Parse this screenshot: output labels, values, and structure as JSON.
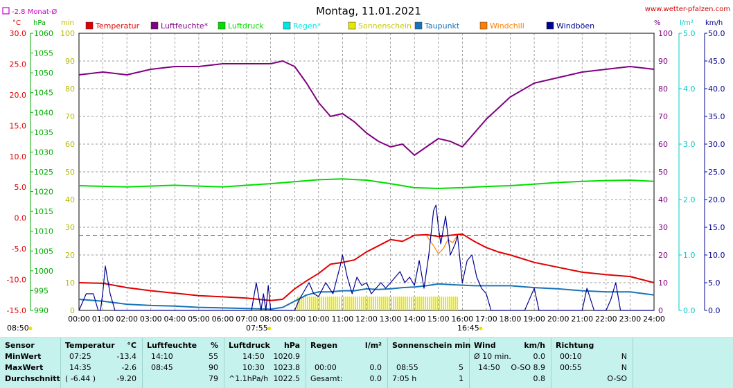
{
  "title": "Montag, 11.01.2021",
  "website": "www.wetter-pfalzen.com",
  "month_avg_label": "-2.8 Monat-Ø",
  "sunrise": "07:55",
  "sunset": "16:45",
  "current_time": "08:50",
  "legend": [
    {
      "name": "Temperatur",
      "color": "#e00000"
    },
    {
      "name": "Luftfeuchte*",
      "color": "#800080"
    },
    {
      "name": "Luftdruck",
      "color": "#00dd00"
    },
    {
      "name": "Regen*",
      "color": "#00e5e5"
    },
    {
      "name": "Sonnenschein",
      "color": "#e6e600"
    },
    {
      "name": "Taupunkt",
      "color": "#1874b8"
    },
    {
      "name": "Windchill",
      "color": "#ff7f00"
    },
    {
      "name": "Windböen",
      "color": "#000090"
    }
  ],
  "axis_units": {
    "temp": "°C",
    "pressure": "hPa",
    "sun": "min",
    "humidity": "%",
    "rain": "l/m²",
    "wind": "km/h"
  },
  "axes": {
    "temp_ticks": [
      "30.0",
      "25.0",
      "20.0",
      "15.0",
      "10.0",
      "5.0",
      "0.0",
      "-5.0",
      "-10.0",
      "-15.0"
    ],
    "pressure_ticks": [
      "1060",
      "1055",
      "1050",
      "1045",
      "1040",
      "1035",
      "1030",
      "1025",
      "1020",
      "1015",
      "1010",
      "1005",
      "1000",
      "995",
      "990"
    ],
    "sun_ticks": [
      "100",
      "90",
      "80",
      "70",
      "60",
      "50",
      "40",
      "30",
      "20",
      "10",
      "0"
    ],
    "humidity_ticks": [
      "100",
      "90",
      "80",
      "70",
      "60",
      "50",
      "40",
      "30",
      "20",
      "10",
      "0"
    ],
    "rain_ticks": [
      "5.0",
      "4.0",
      "3.0",
      "2.0",
      "1.0",
      "0.0"
    ],
    "wind_ticks": [
      "50.0",
      "45.0",
      "40.0",
      "35.0",
      "30.0",
      "25.0",
      "20.0",
      "15.0",
      "10.0",
      "5.0",
      "0.0"
    ],
    "time_ticks": [
      "00:00",
      "01:00",
      "02:00",
      "03:00",
      "04:00",
      "05:00",
      "06:00",
      "07:00",
      "08:00",
      "09:00",
      "10:00",
      "11:00",
      "12:00",
      "13:00",
      "14:00",
      "15:00",
      "16:00",
      "17:00",
      "18:00",
      "19:00",
      "20:00",
      "21:00",
      "22:00",
      "23:00",
      "24:00"
    ]
  },
  "chart_data": {
    "type": "line",
    "title": "Montag, 11.01.2021",
    "x_unit": "hour of day",
    "xlim": [
      0,
      24
    ],
    "temp_ylim": [
      -15,
      30
    ],
    "humidity_ylim": [
      0,
      100
    ],
    "pressure_ylim": [
      990,
      1060
    ],
    "wind_ylim": [
      0,
      50
    ],
    "grid": true,
    "month_avg_temp": -2.8,
    "series": [
      {
        "name": "Temperatur",
        "axis": "temp",
        "x": [
          0,
          1,
          2,
          3,
          4,
          5,
          6,
          7,
          8,
          8.5,
          9,
          9.5,
          10,
          10.5,
          11,
          11.5,
          12,
          12.5,
          13,
          13.5,
          14,
          14.5,
          15,
          15.5,
          16,
          16.5,
          17,
          17.5,
          18,
          19,
          20,
          21,
          22,
          23,
          24
        ],
        "y": [
          -10.5,
          -10.6,
          -11.3,
          -11.8,
          -12.2,
          -12.6,
          -12.8,
          -13.0,
          -13.4,
          -13.2,
          -11.5,
          -10.2,
          -9.0,
          -7.5,
          -7.2,
          -6.8,
          -5.5,
          -4.5,
          -3.5,
          -3.8,
          -2.8,
          -2.7,
          -3.0,
          -2.8,
          -2.6,
          -3.8,
          -4.8,
          -5.5,
          -6.0,
          -7.2,
          -8.0,
          -8.8,
          -9.2,
          -9.5,
          -10.5
        ]
      },
      {
        "name": "Luftfeuchte*",
        "axis": "humidity",
        "x": [
          0,
          1,
          2,
          3,
          4,
          5,
          6,
          7,
          8,
          8.5,
          9,
          9.5,
          10,
          10.5,
          11,
          11.5,
          12,
          12.5,
          13,
          13.5,
          14,
          14.5,
          15,
          15.5,
          16,
          16.5,
          17,
          17.5,
          18,
          19,
          20,
          21,
          22,
          23,
          24
        ],
        "y": [
          85,
          86,
          85,
          87,
          88,
          88,
          89,
          89,
          89,
          90,
          88,
          82,
          75,
          70,
          71,
          68,
          64,
          61,
          59,
          60,
          56,
          59,
          62,
          61,
          59,
          64,
          69,
          73,
          77,
          82,
          84,
          86,
          87,
          88,
          87
        ]
      },
      {
        "name": "Luftdruck",
        "axis": "pressure",
        "x": [
          0,
          2,
          4,
          6,
          8,
          10,
          11,
          12,
          13,
          14,
          15,
          16,
          17,
          18,
          19,
          20,
          21,
          22,
          23,
          24
        ],
        "y": [
          1021.5,
          1021.2,
          1021.6,
          1021.2,
          1022.0,
          1023.0,
          1023.2,
          1022.9,
          1022.0,
          1021.0,
          1020.8,
          1021.0,
          1021.3,
          1021.5,
          1021.9,
          1022.3,
          1022.6,
          1022.8,
          1022.9,
          1022.6
        ]
      },
      {
        "name": "Taupunkt",
        "axis": "temp",
        "x": [
          0,
          1,
          2,
          3,
          4,
          5,
          6,
          7,
          8,
          8.5,
          9,
          9.5,
          10,
          10.5,
          11,
          11.5,
          12,
          12.5,
          13,
          13.5,
          14,
          14.5,
          15,
          15.5,
          16,
          16.5,
          17,
          17.5,
          18,
          19,
          20,
          21,
          22,
          23,
          24
        ],
        "y": [
          -13.2,
          -13.5,
          -14.0,
          -14.2,
          -14.3,
          -14.5,
          -14.6,
          -14.7,
          -14.8,
          -14.5,
          -13.5,
          -12.5,
          -12.0,
          -12.0,
          -11.8,
          -11.8,
          -11.5,
          -11.6,
          -11.5,
          -11.3,
          -11.2,
          -11.0,
          -10.7,
          -10.8,
          -10.9,
          -11.0,
          -11.0,
          -11.0,
          -11.0,
          -11.3,
          -11.5,
          -11.8,
          -12.0,
          -12.0,
          -12.5
        ]
      },
      {
        "name": "Windchill",
        "axis": "temp",
        "x": [
          14.5,
          14.8,
          15.0,
          15.2,
          15.4,
          15.6,
          15.8
        ],
        "y": [
          -2.8,
          -4.5,
          -5.8,
          -5.0,
          -3.5,
          -4.0,
          -2.8
        ]
      },
      {
        "name": "Windböen",
        "axis": "wind",
        "x": [
          0,
          0.3,
          0.6,
          0.8,
          0.9,
          1.0,
          1.1,
          1.3,
          1.5,
          1.8,
          2.2,
          7.2,
          7.4,
          7.6,
          7.7,
          7.8,
          7.9,
          8.0,
          9.0,
          9.2,
          9.4,
          9.6,
          9.8,
          10.0,
          10.3,
          10.6,
          10.9,
          11.0,
          11.2,
          11.4,
          11.6,
          11.8,
          12.0,
          12.2,
          12.4,
          12.6,
          12.8,
          13.0,
          13.2,
          13.4,
          13.6,
          13.8,
          14.0,
          14.2,
          14.4,
          14.6,
          14.8,
          14.9,
          15.0,
          15.1,
          15.3,
          15.5,
          15.7,
          15.8,
          16.0,
          16.2,
          16.4,
          16.6,
          16.8,
          17.0,
          17.2,
          17.5,
          17.8,
          18.0,
          18.3,
          18.6,
          19.0,
          19.2,
          19.5,
          20.0,
          20.5,
          20.8,
          21.0,
          21.2,
          21.5,
          22.0,
          22.2,
          22.4,
          22.6,
          24.0
        ],
        "y": [
          0,
          3.0,
          3.0,
          0,
          0,
          3.5,
          8.0,
          3.0,
          0,
          0,
          0,
          0,
          5.0,
          0,
          3.0,
          0,
          4.5,
          0,
          0,
          2.0,
          3.5,
          5.0,
          3.0,
          2.5,
          5.0,
          3.0,
          8.0,
          10.0,
          6.0,
          3.0,
          6.0,
          4.5,
          5.0,
          3.0,
          4.0,
          5.0,
          4.0,
          5.0,
          6.0,
          7.0,
          5.0,
          6.0,
          4.5,
          9.0,
          4.0,
          10.0,
          18.0,
          19.0,
          15.0,
          12.0,
          17.0,
          10.0,
          12.0,
          13.5,
          5.0,
          9.0,
          10.0,
          6.0,
          4.0,
          3.0,
          0,
          0,
          0,
          0,
          0,
          0,
          4.0,
          0,
          0,
          0,
          0,
          0,
          0,
          4.0,
          0,
          0,
          2.0,
          5.0,
          0,
          0
        ]
      }
    ],
    "sunshine": {
      "name": "Sonnenschein",
      "axis": "sun",
      "start": 9.1,
      "end": 15.85,
      "value": 5
    }
  },
  "footer": {
    "sensor": {
      "label": "Sensor",
      "rows": [
        "MinWert",
        "MaxWert",
        "Durchschnitt"
      ]
    },
    "temperatur": {
      "label": "Temperatur",
      "unit": "°C",
      "rows": [
        [
          "07:25",
          "-13.4"
        ],
        [
          "14:35",
          "-2.6"
        ],
        [
          "( -6.44 )",
          "-9.20"
        ]
      ]
    },
    "luftfeuchte": {
      "label": "Luftfeuchte",
      "unit": "%",
      "rows": [
        [
          "14:10",
          "55"
        ],
        [
          "08:45",
          "90"
        ],
        [
          "",
          "79"
        ]
      ]
    },
    "luftdruck": {
      "label": "Luftdruck",
      "unit": "hPa",
      "rows": [
        [
          "14:50",
          "1020.9"
        ],
        [
          "10:30",
          "1023.8"
        ],
        [
          "^1.1hPa/h",
          "1022.5"
        ]
      ]
    },
    "regen": {
      "label": "Regen",
      "unit": "l/m²",
      "rows": [
        [
          "",
          ""
        ],
        [
          "00:00",
          "0.0"
        ],
        [
          "Gesamt:",
          "0.0"
        ]
      ]
    },
    "sonne": {
      "label": "Sonnenschein min",
      "rows": [
        [
          "",
          ""
        ],
        [
          "08:55",
          "5"
        ],
        [
          "7:05 h",
          "1"
        ]
      ]
    },
    "wind": {
      "label": "Wind",
      "unit": "km/h",
      "rows": [
        [
          "Ø 10 min.",
          "0.0"
        ],
        [
          "14:50",
          "O-SO 8.9"
        ],
        [
          "",
          "0.8"
        ]
      ]
    },
    "richtung": {
      "label": "Richtung",
      "rows": [
        [
          "00:10",
          "N"
        ],
        [
          "00:55",
          "N"
        ],
        [
          "",
          "O-SO"
        ]
      ]
    }
  }
}
